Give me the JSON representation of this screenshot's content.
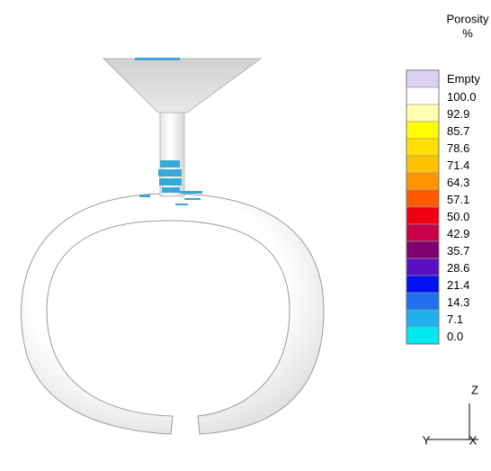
{
  "legend": {
    "title": "Porosity",
    "unit": "%",
    "entries": [
      {
        "label": "Empty",
        "color": "#dcd0f0"
      },
      {
        "label": "100.0",
        "color": "#ffffff"
      },
      {
        "label": "92.9",
        "color": "#ffffb0"
      },
      {
        "label": "85.7",
        "color": "#ffff00"
      },
      {
        "label": "78.6",
        "color": "#ffe000"
      },
      {
        "label": "71.4",
        "color": "#ffc000"
      },
      {
        "label": "64.3",
        "color": "#ff9400"
      },
      {
        "label": "57.1",
        "color": "#ff5a00"
      },
      {
        "label": "50.0",
        "color": "#f00010"
      },
      {
        "label": "42.9",
        "color": "#c80048"
      },
      {
        "label": "35.7",
        "color": "#800070"
      },
      {
        "label": "28.6",
        "color": "#5a10c0"
      },
      {
        "label": "21.4",
        "color": "#0010f0"
      },
      {
        "label": "14.3",
        "color": "#2070f0"
      },
      {
        "label": "7.1",
        "color": "#20b0f0"
      },
      {
        "label": "0.0",
        "color": "#00e8f0"
      }
    ]
  },
  "axes": {
    "z": "Z",
    "y": "Y",
    "x": "X"
  }
}
